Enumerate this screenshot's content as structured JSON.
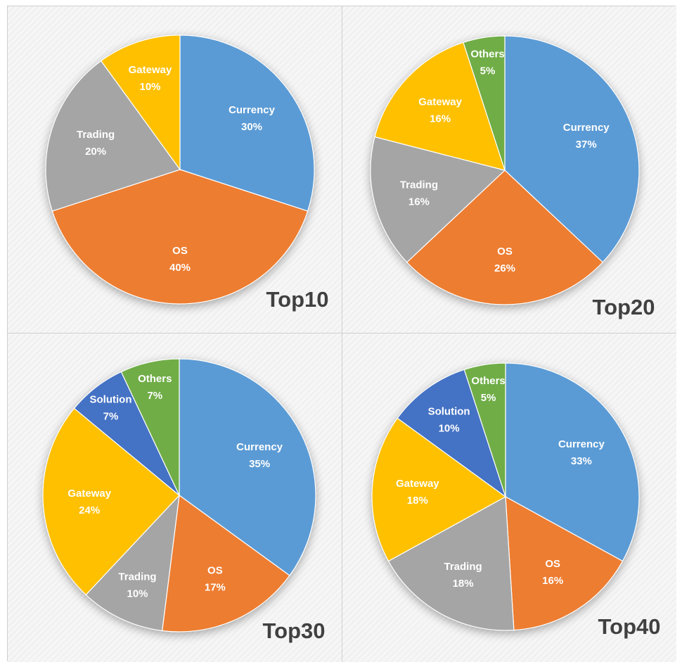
{
  "colors": {
    "Currency": "#5b9bd5",
    "OS": "#ed7d31",
    "Trading": "#a5a5a5",
    "Gateway": "#ffc000",
    "Solution": "#4472c4",
    "Others": "#70ad47"
  },
  "chart_data": [
    {
      "type": "pie",
      "title": "Top10",
      "categories": [
        "Currency",
        "OS",
        "Trading",
        "Gateway"
      ],
      "values": [
        30,
        40,
        20,
        10
      ],
      "value_labels": [
        "30%",
        "40%",
        "20%",
        "10%"
      ]
    },
    {
      "type": "pie",
      "title": "Top20",
      "categories": [
        "Currency",
        "OS",
        "Trading",
        "Gateway",
        "Others"
      ],
      "values": [
        37,
        26,
        16,
        16,
        5
      ],
      "value_labels": [
        "37%",
        "26%",
        "16%",
        "16%",
        "5%"
      ]
    },
    {
      "type": "pie",
      "title": "Top30",
      "categories": [
        "Currency",
        "OS",
        "Trading",
        "Gateway",
        "Solution",
        "Others"
      ],
      "values": [
        35,
        17,
        10,
        24,
        7,
        7
      ],
      "value_labels": [
        "35%",
        "17%",
        "10%",
        "24%",
        "7%",
        "7%"
      ]
    },
    {
      "type": "pie",
      "title": "Top40",
      "categories": [
        "Currency",
        "OS",
        "Trading",
        "Gateway",
        "Solution",
        "Others"
      ],
      "values": [
        33,
        16,
        18,
        18,
        10,
        5
      ],
      "value_labels": [
        "33%",
        "16%",
        "18%",
        "18%",
        "10%",
        "5%"
      ]
    }
  ]
}
